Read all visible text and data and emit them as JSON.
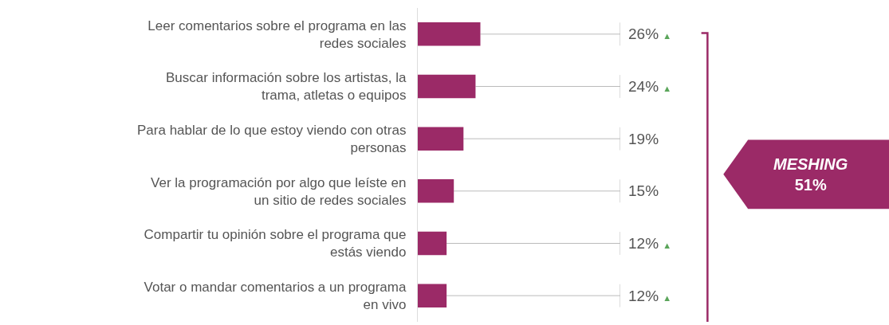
{
  "chart_data": {
    "type": "bar",
    "orientation": "horizontal",
    "categories": [
      "Leer comentarios sobre el programa en las\nredes sociales",
      "Buscar información sobre los artistas, la\ntrama, atletas o equipos",
      "Para hablar de lo que estoy viendo con otras\npersonas",
      "Ver la programación por algo que leíste en\nun sitio de redes sociales",
      "Compartir tu opinión sobre el programa que\nestás viendo",
      "Votar o mandar comentarios a un programa\nen vivo"
    ],
    "values": [
      26,
      24,
      19,
      15,
      12,
      12
    ],
    "value_labels": [
      "26% ▲",
      "24% ▲",
      "19%",
      "15%",
      "12% ▲",
      "12% ▲"
    ],
    "color": "#9b2a67",
    "xlim": [
      0,
      84
    ],
    "tick_labels": "y",
    "grid": false,
    "legend": false,
    "annotations": [
      "MESHING\n51%"
    ]
  }
}
